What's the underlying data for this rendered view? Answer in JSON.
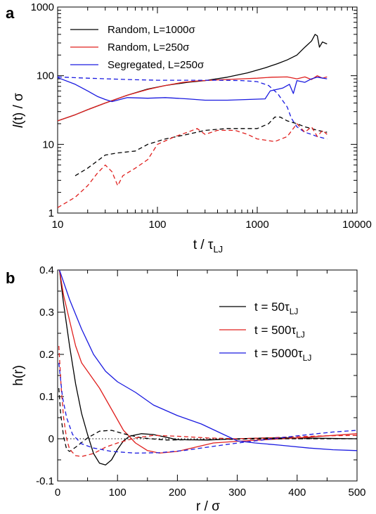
{
  "chart_data": [
    {
      "panel_label": "a",
      "type": "line",
      "xscale": "log",
      "yscale": "log",
      "xlim": [
        10,
        10000
      ],
      "ylim": [
        1,
        1000
      ],
      "xticks": [
        10,
        100,
        1000,
        10000
      ],
      "xtick_labels": [
        "10",
        "100",
        "1000",
        "10000"
      ],
      "yticks": [
        1,
        10,
        100,
        1000
      ],
      "ytick_labels": [
        "1",
        "10",
        "100",
        "1000"
      ],
      "xlabel_main": "t / τ",
      "xlabel_sub": "LJ",
      "ylabel_italic": "l",
      "ylabel_rest": "(t) / σ",
      "legend_position": "top-left",
      "series": [
        {
          "name": "Random, L=1000σ",
          "color": "#000000",
          "dash": false,
          "points": [
            [
              10,
              22
            ],
            [
              15,
              27
            ],
            [
              20,
              32
            ],
            [
              30,
              40
            ],
            [
              50,
              52
            ],
            [
              80,
              64
            ],
            [
              120,
              72
            ],
            [
              200,
              80
            ],
            [
              300,
              85
            ],
            [
              500,
              95
            ],
            [
              800,
              110
            ],
            [
              1200,
              130
            ],
            [
              1600,
              150
            ],
            [
              2000,
              170
            ],
            [
              2500,
              200
            ],
            [
              3000,
              260
            ],
            [
              3500,
              320
            ],
            [
              3800,
              400
            ],
            [
              4000,
              380
            ],
            [
              4200,
              260
            ],
            [
              4500,
              310
            ],
            [
              5000,
              290
            ]
          ]
        },
        {
          "name": "Random, L=250σ",
          "color": "#e0201e",
          "dash": false,
          "points": [
            [
              10,
              22
            ],
            [
              15,
              27
            ],
            [
              20,
              32
            ],
            [
              30,
              40
            ],
            [
              50,
              52
            ],
            [
              80,
              63
            ],
            [
              120,
              72
            ],
            [
              180,
              80
            ],
            [
              250,
              84
            ],
            [
              400,
              87
            ],
            [
              700,
              90
            ],
            [
              1000,
              92
            ],
            [
              1400,
              95
            ],
            [
              2000,
              96
            ],
            [
              2500,
              90
            ],
            [
              3000,
              96
            ],
            [
              3500,
              88
            ],
            [
              4000,
              100
            ],
            [
              4500,
              92
            ],
            [
              5000,
              96
            ]
          ]
        },
        {
          "name": "Segregated, L=250σ",
          "color": "#1a1ae0",
          "dash": false,
          "points": [
            [
              10,
              94
            ],
            [
              15,
              75
            ],
            [
              20,
              60
            ],
            [
              25,
              50
            ],
            [
              30,
              45
            ],
            [
              35,
              42
            ],
            [
              50,
              48
            ],
            [
              80,
              47
            ],
            [
              120,
              48
            ],
            [
              200,
              46
            ],
            [
              300,
              44
            ],
            [
              500,
              44
            ],
            [
              800,
              45
            ],
            [
              1200,
              46
            ],
            [
              1350,
              60
            ],
            [
              1800,
              66
            ],
            [
              2100,
              75
            ],
            [
              2300,
              55
            ],
            [
              2500,
              85
            ],
            [
              3000,
              80
            ],
            [
              3500,
              90
            ],
            [
              4000,
              95
            ],
            [
              5000,
              90
            ]
          ]
        },
        {
          "name": "",
          "color": "#1a1ae0",
          "dash": true,
          "points": [
            [
              10,
              96
            ],
            [
              20,
              92
            ],
            [
              50,
              88
            ],
            [
              100,
              86
            ],
            [
              200,
              86
            ],
            [
              400,
              86
            ],
            [
              700,
              85
            ],
            [
              1000,
              82
            ],
            [
              1300,
              72
            ],
            [
              1600,
              55
            ],
            [
              2000,
              35
            ],
            [
              2200,
              24
            ],
            [
              2500,
              18
            ],
            [
              3000,
              15
            ],
            [
              3500,
              14
            ],
            [
              4000,
              13
            ],
            [
              5000,
              12
            ]
          ]
        },
        {
          "name": "",
          "color": "#000000",
          "dash": true,
          "points": [
            [
              15,
              3.5
            ],
            [
              20,
              4.5
            ],
            [
              30,
              7
            ],
            [
              40,
              7.5
            ],
            [
              60,
              8
            ],
            [
              80,
              10
            ],
            [
              120,
              12
            ],
            [
              200,
              14
            ],
            [
              300,
              16
            ],
            [
              500,
              17
            ],
            [
              800,
              17
            ],
            [
              1000,
              17
            ],
            [
              1300,
              20
            ],
            [
              1500,
              25
            ],
            [
              1700,
              25
            ],
            [
              2000,
              22
            ],
            [
              2500,
              20
            ],
            [
              3000,
              18
            ],
            [
              3500,
              17
            ],
            [
              4000,
              16
            ],
            [
              5000,
              15
            ]
          ]
        },
        {
          "name": "",
          "color": "#e0201e",
          "dash": true,
          "points": [
            [
              10,
              1.2
            ],
            [
              15,
              1.7
            ],
            [
              20,
              2.5
            ],
            [
              25,
              3.8
            ],
            [
              30,
              5
            ],
            [
              35,
              4
            ],
            [
              40,
              2.5
            ],
            [
              45,
              3.5
            ],
            [
              60,
              4.5
            ],
            [
              80,
              6
            ],
            [
              100,
              10
            ],
            [
              150,
              13
            ],
            [
              200,
              15
            ],
            [
              250,
              17
            ],
            [
              300,
              14
            ],
            [
              400,
              16
            ],
            [
              600,
              16
            ],
            [
              800,
              14
            ],
            [
              1000,
              12
            ],
            [
              1500,
              11
            ],
            [
              2000,
              13
            ],
            [
              2500,
              20
            ],
            [
              3000,
              15
            ],
            [
              3500,
              18
            ],
            [
              4000,
              13
            ],
            [
              4500,
              16
            ],
            [
              5000,
              14
            ]
          ]
        }
      ]
    },
    {
      "panel_label": "b",
      "type": "line",
      "xlim": [
        0,
        500
      ],
      "ylim": [
        -0.1,
        0.4
      ],
      "xticks": [
        0,
        100,
        200,
        300,
        400,
        500
      ],
      "xtick_labels": [
        "0",
        "100",
        "200",
        "300",
        "400",
        "500"
      ],
      "yticks": [
        -0.1,
        0,
        0.1,
        0.2,
        0.3,
        0.4
      ],
      "ytick_labels": [
        "-0.1",
        "0",
        "0.1",
        "0.2",
        "0.3",
        "0.4"
      ],
      "xlabel": "r / σ",
      "ylabel": "h(r)",
      "zero_line": true,
      "legend_position": "top-right",
      "series": [
        {
          "name_main": "t = 50τ",
          "name_sub": "LJ",
          "color": "#000000",
          "dash": false,
          "points": [
            [
              3,
              0.4
            ],
            [
              10,
              0.32
            ],
            [
              20,
              0.22
            ],
            [
              30,
              0.13
            ],
            [
              40,
              0.06
            ],
            [
              50,
              0.01
            ],
            [
              60,
              -0.035
            ],
            [
              70,
              -0.058
            ],
            [
              80,
              -0.062
            ],
            [
              90,
              -0.05
            ],
            [
              100,
              -0.025
            ],
            [
              110,
              -0.005
            ],
            [
              120,
              0.006
            ],
            [
              140,
              0.012
            ],
            [
              160,
              0.01
            ],
            [
              180,
              0.004
            ],
            [
              200,
              -0.002
            ],
            [
              250,
              -0.003
            ],
            [
              300,
              0
            ],
            [
              350,
              0.002
            ],
            [
              400,
              0.002
            ],
            [
              500,
              0
            ]
          ]
        },
        {
          "name_main": "t = 500τ",
          "name_sub": "LJ",
          "color": "#e0201e",
          "dash": false,
          "points": [
            [
              3,
              0.4
            ],
            [
              10,
              0.34
            ],
            [
              20,
              0.28
            ],
            [
              30,
              0.22
            ],
            [
              40,
              0.18
            ],
            [
              50,
              0.16
            ],
            [
              70,
              0.12
            ],
            [
              90,
              0.07
            ],
            [
              110,
              0.02
            ],
            [
              130,
              -0.01
            ],
            [
              150,
              -0.028
            ],
            [
              170,
              -0.034
            ],
            [
              200,
              -0.03
            ],
            [
              230,
              -0.02
            ],
            [
              260,
              -0.01
            ],
            [
              300,
              -0.006
            ],
            [
              350,
              -0.002
            ],
            [
              400,
              0.002
            ],
            [
              450,
              0.007
            ],
            [
              500,
              0.012
            ]
          ]
        },
        {
          "name_main": "t = 5000τ",
          "name_sub": "LJ",
          "color": "#1a1ae0",
          "dash": false,
          "points": [
            [
              3,
              0.4
            ],
            [
              20,
              0.33
            ],
            [
              40,
              0.26
            ],
            [
              60,
              0.2
            ],
            [
              80,
              0.16
            ],
            [
              100,
              0.135
            ],
            [
              130,
              0.11
            ],
            [
              160,
              0.08
            ],
            [
              200,
              0.055
            ],
            [
              240,
              0.035
            ],
            [
              270,
              0.015
            ],
            [
              300,
              -0.005
            ],
            [
              330,
              -0.01
            ],
            [
              370,
              -0.015
            ],
            [
              420,
              -0.022
            ],
            [
              460,
              -0.026
            ],
            [
              500,
              -0.028
            ]
          ]
        },
        {
          "name_main": "",
          "name_sub": "",
          "color": "#000000",
          "dash": true,
          "points": [
            [
              2,
              0.12
            ],
            [
              5,
              0.06
            ],
            [
              10,
              0.005
            ],
            [
              15,
              -0.025
            ],
            [
              20,
              -0.03
            ],
            [
              30,
              -0.02
            ],
            [
              50,
              0.002
            ],
            [
              70,
              0.018
            ],
            [
              90,
              0.02
            ],
            [
              110,
              0.012
            ],
            [
              140,
              0.002
            ],
            [
              180,
              -0.003
            ],
            [
              250,
              -0.002
            ],
            [
              350,
              0
            ],
            [
              500,
              0
            ]
          ]
        },
        {
          "name_main": "",
          "name_sub": "",
          "color": "#e0201e",
          "dash": true,
          "points": [
            [
              2,
              0.22
            ],
            [
              6,
              0.12
            ],
            [
              10,
              0.05
            ],
            [
              15,
              0
            ],
            [
              20,
              -0.025
            ],
            [
              30,
              -0.04
            ],
            [
              40,
              -0.042
            ],
            [
              60,
              -0.035
            ],
            [
              80,
              -0.02
            ],
            [
              100,
              -0.01
            ],
            [
              130,
              0.002
            ],
            [
              160,
              0.008
            ],
            [
              200,
              0.006
            ],
            [
              250,
              0.002
            ],
            [
              300,
              0
            ],
            [
              350,
              0.002
            ],
            [
              400,
              0.005
            ],
            [
              450,
              0.007
            ],
            [
              500,
              0.008
            ]
          ]
        },
        {
          "name_main": "",
          "name_sub": "",
          "color": "#1a1ae0",
          "dash": true,
          "points": [
            [
              2,
              0.18
            ],
            [
              8,
              0.1
            ],
            [
              15,
              0.05
            ],
            [
              25,
              0.01
            ],
            [
              40,
              -0.012
            ],
            [
              60,
              -0.022
            ],
            [
              90,
              -0.03
            ],
            [
              130,
              -0.034
            ],
            [
              170,
              -0.033
            ],
            [
              210,
              -0.028
            ],
            [
              250,
              -0.02
            ],
            [
              290,
              -0.012
            ],
            [
              330,
              -0.005
            ],
            [
              370,
              0.002
            ],
            [
              420,
              0.01
            ],
            [
              460,
              0.016
            ],
            [
              500,
              0.02
            ]
          ]
        }
      ]
    }
  ]
}
